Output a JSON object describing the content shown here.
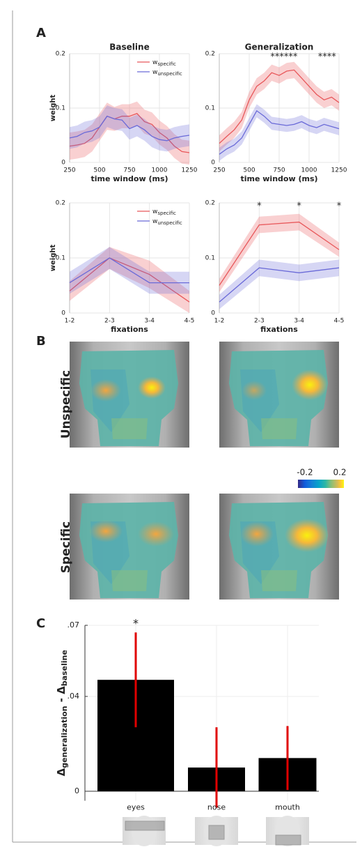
{
  "panel_labels": [
    "A",
    "B",
    "C"
  ],
  "chart_data": [
    {
      "type": "line",
      "title": "Baseline",
      "xlabel": "time window  (ms)",
      "ylabel": "weight",
      "legend": "upper right",
      "grid": true,
      "x": [
        250,
        312.5,
        375,
        437.5,
        500,
        562.5,
        625,
        687.5,
        750,
        812.5,
        875,
        937.5,
        1000,
        1062.5,
        1125,
        1187.5,
        1250
      ],
      "xlim": [
        250,
        1250
      ],
      "xticks": [
        250,
        500,
        750,
        1000,
        1250
      ],
      "ylim": [
        0,
        0.2
      ],
      "yticks": [
        0,
        0.1,
        0.2
      ],
      "series": [
        {
          "name": "w",
          "name_subscript": "specific",
          "color": "#e8575a",
          "values": [
            0.03,
            0.032,
            0.035,
            0.045,
            0.065,
            0.085,
            0.08,
            0.085,
            0.085,
            0.09,
            0.075,
            0.07,
            0.055,
            0.045,
            0.03,
            0.02,
            0.018
          ],
          "errors": [
            0.025,
            0.025,
            0.025,
            0.025,
            0.025,
            0.025,
            0.022,
            0.022,
            0.022,
            0.022,
            0.022,
            0.022,
            0.022,
            0.022,
            0.022,
            0.022,
            0.022
          ]
        },
        {
          "name": "w",
          "name_subscript": "unspecific",
          "color": "#6a6ad8",
          "values": [
            0.045,
            0.048,
            0.055,
            0.058,
            0.065,
            0.085,
            0.08,
            0.078,
            0.062,
            0.068,
            0.06,
            0.048,
            0.042,
            0.04,
            0.045,
            0.048,
            0.05
          ],
          "errors": [
            0.02,
            0.02,
            0.02,
            0.02,
            0.02,
            0.02,
            0.02,
            0.02,
            0.02,
            0.02,
            0.02,
            0.02,
            0.02,
            0.02,
            0.02,
            0.02,
            0.02
          ]
        }
      ]
    },
    {
      "type": "line",
      "title": "Generalization",
      "xlabel": "time window  (ms)",
      "grid": true,
      "x": [
        250,
        312.5,
        375,
        437.5,
        500,
        562.5,
        625,
        687.5,
        750,
        812.5,
        875,
        937.5,
        1000,
        1062.5,
        1125,
        1187.5,
        1250
      ],
      "xlim": [
        250,
        1250
      ],
      "xticks": [
        250,
        500,
        750,
        1000,
        1250
      ],
      "ylim": [
        0,
        0.2
      ],
      "yticks": [
        0,
        0.1,
        0.2
      ],
      "annotations": [
        {
          "text": "******",
          "x": 790
        },
        {
          "text": "****",
          "x": 1150
        }
      ],
      "series": [
        {
          "name": "w",
          "name_subscript": "specific",
          "color": "#e8575a",
          "values": [
            0.035,
            0.048,
            0.06,
            0.078,
            0.115,
            0.14,
            0.15,
            0.165,
            0.16,
            0.168,
            0.17,
            0.155,
            0.14,
            0.125,
            0.115,
            0.12,
            0.11
          ],
          "errors": [
            0.015,
            0.015,
            0.015,
            0.015,
            0.015,
            0.015,
            0.015,
            0.015,
            0.015,
            0.015,
            0.015,
            0.015,
            0.015,
            0.015,
            0.015,
            0.015,
            0.015
          ]
        },
        {
          "name": "w",
          "name_subscript": "unspecific",
          "color": "#6a6ad8",
          "values": [
            0.015,
            0.025,
            0.032,
            0.045,
            0.07,
            0.095,
            0.085,
            0.072,
            0.07,
            0.068,
            0.07,
            0.075,
            0.068,
            0.064,
            0.07,
            0.066,
            0.062
          ],
          "errors": [
            0.012,
            0.012,
            0.012,
            0.012,
            0.012,
            0.012,
            0.012,
            0.012,
            0.012,
            0.012,
            0.012,
            0.012,
            0.012,
            0.012,
            0.012,
            0.012,
            0.012
          ]
        }
      ]
    },
    {
      "type": "line",
      "xlabel": "fixations",
      "ylabel": "weight",
      "legend": "upper right",
      "grid": true,
      "categories": [
        "1-2",
        "2-3",
        "3-4",
        "4-5"
      ],
      "ylim": [
        0,
        0.2
      ],
      "yticks": [
        0,
        0.1,
        0.2
      ],
      "series": [
        {
          "name": "w",
          "name_subscript": "specific",
          "color": "#e8575a",
          "values": [
            0.04,
            0.1,
            0.07,
            0.02
          ],
          "errors": [
            0.018,
            0.02,
            0.025,
            0.02
          ]
        },
        {
          "name": "w",
          "name_subscript": "unspecific",
          "color": "#6a6ad8",
          "values": [
            0.055,
            0.1,
            0.055,
            0.055
          ],
          "errors": [
            0.02,
            0.02,
            0.02,
            0.02
          ]
        }
      ]
    },
    {
      "type": "line",
      "xlabel": "fixations",
      "grid": true,
      "categories": [
        "1-2",
        "2-3",
        "3-4",
        "4-5"
      ],
      "ylim": [
        0,
        0.2
      ],
      "yticks": [
        0,
        0.1,
        0.2
      ],
      "annotations": [
        null,
        "*",
        "*",
        "*"
      ],
      "series": [
        {
          "name": "w",
          "name_subscript": "specific",
          "color": "#e8575a",
          "values": [
            0.05,
            0.16,
            0.165,
            0.115
          ],
          "errors": [
            0.012,
            0.015,
            0.015,
            0.013
          ]
        },
        {
          "name": "w",
          "name_subscript": "unspecific",
          "color": "#6a6ad8",
          "values": [
            0.02,
            0.082,
            0.073,
            0.082
          ],
          "errors": [
            0.013,
            0.015,
            0.015,
            0.015
          ]
        }
      ]
    },
    {
      "type": "bar",
      "categories": [
        "eyes",
        "nose",
        "mouth"
      ],
      "values": [
        0.047,
        0.01,
        0.014
      ],
      "errors": [
        0.02,
        0.017,
        0.0135
      ],
      "color": "#000000",
      "error_color": "#e00000",
      "grid": true,
      "ylim": [
        -0.004,
        0.07
      ],
      "yticks": [
        {
          "value": 0.07,
          "label": ".07"
        },
        {
          "value": 0.04,
          "label": ".04"
        },
        0
      ],
      "ylabel": {
        "left": "Δ",
        "left_subscript": "generalization",
        "operator": " - ",
        "right": "Δ",
        "right_subscript": "baseline"
      },
      "annotations": [
        "*",
        null,
        null
      ]
    }
  ],
  "heatmaps": {
    "row_labels": [
      "Unspecific",
      "Specific"
    ],
    "colorbar": {
      "lim": [
        -0.2,
        0.2
      ],
      "ticks": [
        -0.2,
        0.2
      ]
    }
  }
}
